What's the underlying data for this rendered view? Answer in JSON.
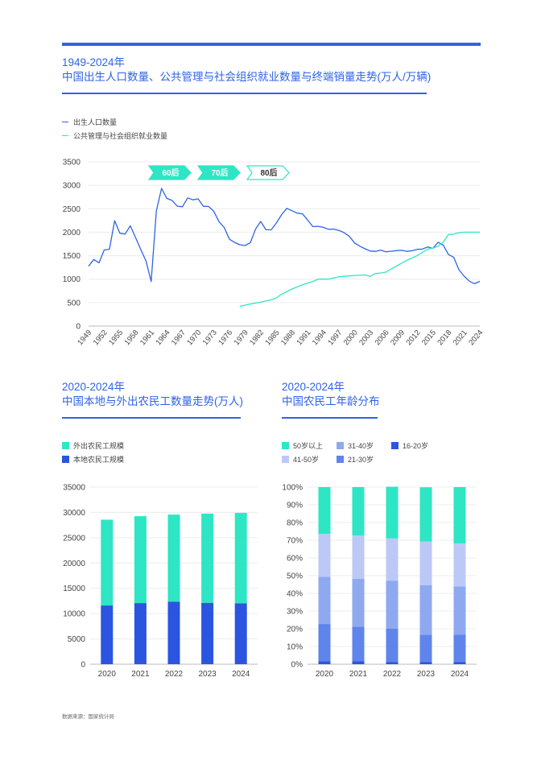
{
  "header": {
    "title_line1": "1949-2024年",
    "title_line2": "中国出生人口数量、公共管理与社会组织就业数量与终端销量走势(万人/万辆)"
  },
  "left_section": {
    "title_line1": "2020-2024年",
    "title_line2": "中国本地与外出农民工数量走势(万人)"
  },
  "right_section": {
    "title_line1": "2020-2024年",
    "title_line2": "中国农民工年龄分布"
  },
  "source": "数据来源：国家统计局",
  "colors": {
    "blue": "#2f63e8",
    "teal": "#2ee6c4",
    "c41": "#bcc9f6",
    "c31": "#8fa9f0",
    "c21": "#5f85ec",
    "c16": "#2b55e0"
  },
  "chart_data": [
    {
      "type": "line",
      "legend": [
        "出生人口数量",
        "公共管理与社会组织就业数量"
      ],
      "annotations": [
        "60后",
        "70后",
        "80后"
      ],
      "ylim": [
        0,
        3500
      ],
      "yticks": [
        "0",
        "500",
        "1000",
        "1500",
        "2000",
        "2500",
        "3000",
        "3500"
      ],
      "xlim": [
        1949,
        2024
      ],
      "xticks": [
        "1949",
        "1952",
        "1955",
        "1958",
        "1961",
        "1964",
        "1967",
        "1970",
        "1973",
        "1976",
        "1979",
        "1982",
        "1985",
        "1988",
        "1991",
        "1994",
        "1997",
        "2000",
        "2003",
        "2006",
        "2009",
        "2012",
        "2015",
        "2018",
        "2021",
        "2024"
      ],
      "series": [
        {
          "name": "出生人口数量",
          "x": [
            1949,
            1950,
            1951,
            1952,
            1953,
            1954,
            1955,
            1956,
            1957,
            1958,
            1959,
            1960,
            1961,
            1962,
            1963,
            1964,
            1965,
            1966,
            1967,
            1968,
            1969,
            1970,
            1971,
            1972,
            1973,
            1974,
            1975,
            1976,
            1977,
            1978,
            1979,
            1980,
            1981,
            1982,
            1983,
            1984,
            1985,
            1986,
            1987,
            1988,
            1989,
            1990,
            1991,
            1992,
            1993,
            1994,
            1995,
            1996,
            1997,
            1998,
            1999,
            2000,
            2001,
            2002,
            2003,
            2004,
            2005,
            2006,
            2007,
            2008,
            2009,
            2010,
            2011,
            2012,
            2013,
            2014,
            2015,
            2016,
            2017,
            2018,
            2019,
            2020,
            2021,
            2022,
            2023,
            2024
          ],
          "values": [
            1275,
            1419,
            1349,
            1622,
            1637,
            2245,
            1978,
            1961,
            2138,
            1889,
            1635,
            1389,
            949,
            2451,
            2934,
            2721,
            2679,
            2554,
            2543,
            2731,
            2690,
            2710,
            2551,
            2550,
            2447,
            2226,
            2102,
            1849,
            1783,
            1733,
            1715,
            1776,
            2064,
            2230,
            2052,
            2050,
            2196,
            2374,
            2508,
            2457,
            2407,
            2391,
            2258,
            2119,
            2126,
            2104,
            2063,
            2067,
            2038,
            1991,
            1909,
            1771,
            1702,
            1647,
            1599,
            1593,
            1617,
            1584,
            1594,
            1608,
            1615,
            1592,
            1604,
            1635,
            1640,
            1687,
            1655,
            1786,
            1723,
            1523,
            1465,
            1200,
            1062,
            956,
            902,
            954
          ]
        },
        {
          "name": "公共管理与社会组织就业数量",
          "x": [
            1978,
            1980,
            1982,
            1984,
            1985,
            1986,
            1988,
            1990,
            1992,
            1993,
            1995,
            1997,
            2000,
            2002,
            2003,
            2004,
            2005,
            2006,
            2008,
            2010,
            2012,
            2014,
            2015,
            2016,
            2017,
            2018,
            2019,
            2020,
            2021,
            2022,
            2023,
            2024
          ],
          "values": [
            420,
            470,
            510,
            560,
            600,
            680,
            790,
            880,
            950,
            1000,
            1000,
            1050,
            1080,
            1090,
            1060,
            1120,
            1130,
            1150,
            1280,
            1400,
            1500,
            1640,
            1660,
            1700,
            1790,
            1950,
            1960,
            1990,
            2000,
            2000,
            2000,
            2000
          ]
        }
      ]
    },
    {
      "type": "bar",
      "stacked": true,
      "categories": [
        "2020",
        "2021",
        "2022",
        "2023",
        "2024"
      ],
      "ylim": [
        0,
        35000
      ],
      "yticks": [
        "0",
        "5000",
        "10000",
        "15000",
        "20000",
        "25000",
        "30000",
        "35000"
      ],
      "series": [
        {
          "name": "本地农民工规模",
          "values": [
            11601,
            12079,
            12372,
            12095,
            12023
          ]
        },
        {
          "name": "外出农民工规模",
          "values": [
            16959,
            17172,
            17190,
            17658,
            17871
          ]
        }
      ]
    },
    {
      "type": "bar",
      "stacked": true,
      "categories": [
        "2020",
        "2021",
        "2022",
        "2023",
        "2024"
      ],
      "ylim": [
        0,
        100
      ],
      "yticks": [
        "0%",
        "10%",
        "20%",
        "30%",
        "40%",
        "50%",
        "60%",
        "70%",
        "80%",
        "90%",
        "100%"
      ],
      "series": [
        {
          "name": "16-20岁",
          "values": [
            1.6,
            1.6,
            1.3,
            1.3,
            1.3
          ]
        },
        {
          "name": "21-30岁",
          "values": [
            21.1,
            19.6,
            18.7,
            15.4,
            15.3
          ]
        },
        {
          "name": "31-40岁",
          "values": [
            26.7,
            27.0,
            27.2,
            28.0,
            27.4
          ]
        },
        {
          "name": "41-50岁",
          "values": [
            24.2,
            24.5,
            23.8,
            24.6,
            24.2
          ]
        },
        {
          "name": "50岁以上",
          "values": [
            26.4,
            27.3,
            29.2,
            30.6,
            31.8
          ]
        }
      ],
      "legend_order": [
        "50岁以上",
        "31-40岁",
        "16-20岁",
        "41-50岁",
        "21-30岁"
      ]
    }
  ]
}
